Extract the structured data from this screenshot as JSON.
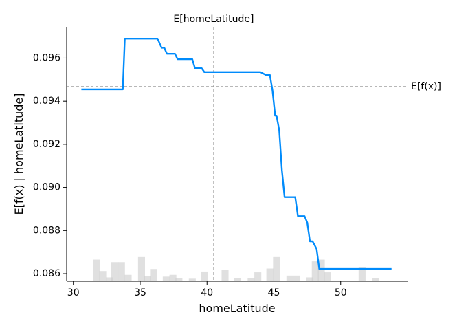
{
  "chart_data": {
    "type": "line",
    "xlabel": "homeLatitude",
    "ylabel": "E[f(x) | homeLatitude]",
    "xlim": [
      29.5,
      55.0
    ],
    "ylim": [
      0.08565,
      0.09745
    ],
    "x_ticks": [
      30,
      35,
      40,
      45,
      50
    ],
    "y_ticks": [
      0.086,
      0.088,
      0.09,
      0.092,
      0.094,
      0.096
    ],
    "y_tick_labels": [
      "0.086",
      "0.088",
      "0.090",
      "0.092",
      "0.094",
      "0.096"
    ],
    "expected_x": 40.5,
    "expected_x_label": "E[homeLatitude]",
    "expected_fx": 0.09468,
    "expected_fx_label": "E[f(x)]",
    "grid": false,
    "line_color": "#008bfb",
    "hist_color": "#cccccc",
    "series": [
      {
        "x": [
          30.6,
          33.7,
          33.85,
          35.0,
          36.3,
          36.6,
          36.8,
          37.0,
          37.6,
          37.8,
          38.9,
          39.1,
          39.6,
          39.8,
          40.3,
          40.5,
          41.0,
          42.0,
          43.0,
          44.0,
          44.4,
          44.7,
          44.9,
          45.1,
          45.2,
          45.4,
          45.6,
          45.8,
          46.0,
          46.6,
          46.8,
          47.3,
          47.5,
          47.7,
          47.9,
          48.2,
          48.4,
          48.6,
          49.0,
          50.0,
          51.0,
          52.0,
          53.0,
          53.8
        ],
        "y": [
          0.09455,
          0.09455,
          0.0969,
          0.0969,
          0.0969,
          0.09648,
          0.09648,
          0.0962,
          0.0962,
          0.09595,
          0.09595,
          0.09553,
          0.09553,
          0.09535,
          0.09535,
          0.09535,
          0.09535,
          0.09535,
          0.09535,
          0.09535,
          0.09522,
          0.09522,
          0.0945,
          0.09333,
          0.09333,
          0.09265,
          0.0908,
          0.08955,
          0.08955,
          0.08955,
          0.08867,
          0.08867,
          0.08837,
          0.0875,
          0.0875,
          0.08715,
          0.08622,
          0.08622,
          0.08622,
          0.08622,
          0.08622,
          0.08622,
          0.08622,
          0.08622
        ]
      }
    ],
    "histogram": {
      "bin_width": 0.52,
      "bins": [
        {
          "x": 31.75,
          "v": 0.085
        },
        {
          "x": 32.2,
          "v": 0.04
        },
        {
          "x": 32.7,
          "v": 0.015
        },
        {
          "x": 33.1,
          "v": 0.075
        },
        {
          "x": 33.6,
          "v": 0.075
        },
        {
          "x": 34.1,
          "v": 0.025
        },
        {
          "x": 35.1,
          "v": 0.095
        },
        {
          "x": 35.55,
          "v": 0.02
        },
        {
          "x": 36.0,
          "v": 0.048
        },
        {
          "x": 36.95,
          "v": 0.018
        },
        {
          "x": 37.45,
          "v": 0.025
        },
        {
          "x": 37.9,
          "v": 0.012
        },
        {
          "x": 38.9,
          "v": 0.01
        },
        {
          "x": 39.8,
          "v": 0.038
        },
        {
          "x": 41.35,
          "v": 0.045
        },
        {
          "x": 42.3,
          "v": 0.012
        },
        {
          "x": 43.3,
          "v": 0.012
        },
        {
          "x": 43.8,
          "v": 0.035
        },
        {
          "x": 44.7,
          "v": 0.05
        },
        {
          "x": 45.2,
          "v": 0.095
        },
        {
          "x": 46.2,
          "v": 0.022
        },
        {
          "x": 46.7,
          "v": 0.022
        },
        {
          "x": 47.7,
          "v": 0.015
        },
        {
          "x": 48.1,
          "v": 0.078
        },
        {
          "x": 48.55,
          "v": 0.085
        },
        {
          "x": 49.0,
          "v": 0.035
        },
        {
          "x": 51.6,
          "v": 0.055
        },
        {
          "x": 52.6,
          "v": 0.012
        }
      ]
    }
  }
}
